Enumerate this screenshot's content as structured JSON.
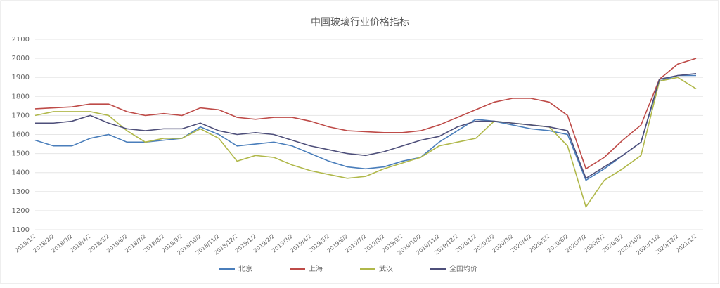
{
  "chart_data": {
    "type": "line",
    "title": "中国玻璃行业价格指标",
    "categories": [
      "2018/1/2",
      "2018/2/2",
      "2018/3/2",
      "2018/4/2",
      "2018/5/2",
      "2018/6/2",
      "2018/7/2",
      "2018/8/2",
      "2018/9/2",
      "2018/10/2",
      "2018/11/2",
      "2018/12/2",
      "2019/1/2",
      "2019/2/2",
      "2019/3/2",
      "2019/4/2",
      "2019/5/2",
      "2019/6/2",
      "2019/7/2",
      "2019/8/2",
      "2019/9/2",
      "2019/10/2",
      "2019/11/2",
      "2019/12/2",
      "2020/1/2",
      "2020/2/2",
      "2020/3/2",
      "2020/4/2",
      "2020/5/2",
      "2020/6/2",
      "2020/7/2",
      "2020/8/2",
      "2020/9/2",
      "2020/10/2",
      "2020/11/2",
      "2020/12/2",
      "2021/1/2"
    ],
    "series": [
      {
        "name": "北京",
        "color": "#4a7ebb",
        "values": [
          1570,
          1540,
          1540,
          1580,
          1600,
          1560,
          1560,
          1570,
          1580,
          1640,
          1600,
          1540,
          1550,
          1560,
          1540,
          1500,
          1460,
          1430,
          1420,
          1430,
          1460,
          1480,
          1560,
          1620,
          1680,
          1670,
          1650,
          1630,
          1620,
          1600,
          1360,
          1420,
          1490,
          1560,
          1880,
          1910,
          1910
        ]
      },
      {
        "name": "上海",
        "color": "#be4b48",
        "values": [
          1735,
          1740,
          1745,
          1760,
          1760,
          1720,
          1700,
          1710,
          1700,
          1740,
          1730,
          1690,
          1680,
          1690,
          1690,
          1670,
          1640,
          1620,
          1615,
          1610,
          1610,
          1620,
          1650,
          1690,
          1730,
          1770,
          1790,
          1790,
          1770,
          1700,
          1420,
          1480,
          1570,
          1650,
          1890,
          1970,
          2000
        ]
      },
      {
        "name": "武汉",
        "color": "#b0b84a",
        "values": [
          1700,
          1720,
          1720,
          1720,
          1700,
          1620,
          1560,
          1580,
          1580,
          1630,
          1580,
          1460,
          1490,
          1480,
          1440,
          1410,
          1390,
          1370,
          1380,
          1420,
          1450,
          1480,
          1540,
          1560,
          1580,
          1670,
          1660,
          1650,
          1640,
          1540,
          1220,
          1360,
          1420,
          1490,
          1880,
          1900,
          1840
        ]
      },
      {
        "name": "全国均价",
        "color": "#4e4f7a",
        "values": [
          1660,
          1660,
          1670,
          1700,
          1660,
          1630,
          1620,
          1630,
          1630,
          1660,
          1620,
          1600,
          1610,
          1600,
          1570,
          1540,
          1520,
          1500,
          1490,
          1510,
          1540,
          1570,
          1590,
          1640,
          1670,
          1670,
          1660,
          1650,
          1640,
          1620,
          1370,
          1430,
          1490,
          1560,
          1890,
          1910,
          1920
        ]
      }
    ],
    "ylim": [
      1100,
      2100
    ],
    "yticks": [
      1100,
      1200,
      1300,
      1400,
      1500,
      1600,
      1700,
      1800,
      1900,
      2000,
      2100
    ],
    "grid": true
  }
}
